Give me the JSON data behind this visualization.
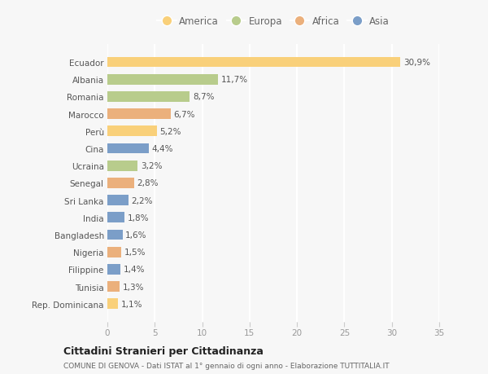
{
  "countries": [
    "Ecuador",
    "Albania",
    "Romania",
    "Marocco",
    "Perù",
    "Cina",
    "Ucraina",
    "Senegal",
    "Sri Lanka",
    "India",
    "Bangladesh",
    "Nigeria",
    "Filippine",
    "Tunisia",
    "Rep. Dominicana"
  ],
  "values": [
    30.9,
    11.7,
    8.7,
    6.7,
    5.2,
    4.4,
    3.2,
    2.8,
    2.2,
    1.8,
    1.6,
    1.5,
    1.4,
    1.3,
    1.1
  ],
  "labels": [
    "30,9%",
    "11,7%",
    "8,7%",
    "6,7%",
    "5,2%",
    "4,4%",
    "3,2%",
    "2,8%",
    "2,2%",
    "1,8%",
    "1,6%",
    "1,5%",
    "1,4%",
    "1,3%",
    "1,1%"
  ],
  "continents": [
    "America",
    "Europa",
    "Europa",
    "Africa",
    "America",
    "Asia",
    "Europa",
    "Africa",
    "Asia",
    "Asia",
    "Asia",
    "Africa",
    "Asia",
    "Africa",
    "America"
  ],
  "continent_colors": {
    "America": "#F9D07A",
    "Europa": "#B8CC8C",
    "Africa": "#EBB07C",
    "Asia": "#7B9EC8"
  },
  "legend_order": [
    "America",
    "Europa",
    "Africa",
    "Asia"
  ],
  "xlim": [
    0,
    35
  ],
  "xticks": [
    0,
    5,
    10,
    15,
    20,
    25,
    30,
    35
  ],
  "title": "Cittadini Stranieri per Cittadinanza",
  "subtitle": "COMUNE DI GENOVA - Dati ISTAT al 1° gennaio di ogni anno - Elaborazione TUTTITALIA.IT",
  "bg_color": "#f7f7f7",
  "grid_color": "#ffffff",
  "bar_height": 0.6,
  "label_fontsize": 7.5,
  "ytick_fontsize": 7.5,
  "xtick_fontsize": 7.5
}
